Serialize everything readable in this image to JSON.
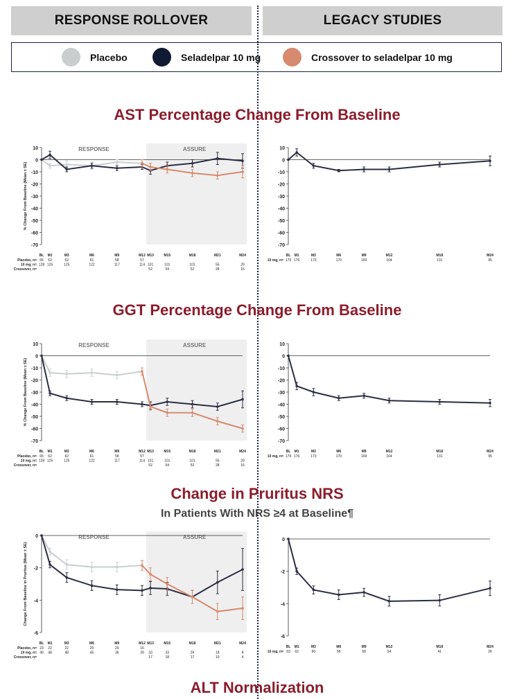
{
  "headers": {
    "left": "RESPONSE ROLLOVER",
    "right": "LEGACY STUDIES"
  },
  "legend": [
    {
      "label": "Placebo",
      "color": "#c9cfcf"
    },
    {
      "label": "Seladelpar 10 mg",
      "color": "#111a33"
    },
    {
      "label": "Crossover to seladelpar 10 mg",
      "color": "#d88a6e"
    }
  ],
  "sections": {
    "ast": {
      "title": "AST Percentage Change From Baseline"
    },
    "ggt": {
      "title": "GGT Percentage Change From Baseline"
    },
    "pruritus": {
      "title": "Change in Pruritus NRS",
      "subtitle": "In Patients With NRS ≥4 at Baseline¶"
    },
    "alt": {
      "title": "ALT Normalization"
    }
  },
  "chart_data": [
    {
      "type": "line",
      "id": "ast-rollover",
      "ylabel": "% Change From Baseline (Mean ± SE)",
      "ylim": [
        -70,
        10
      ],
      "yticks": [
        10,
        0,
        -10,
        -20,
        -30,
        -40,
        -50,
        -60,
        -70
      ],
      "x_labels": [
        "BL",
        "M1",
        "M3",
        "M6",
        "M9",
        "M12",
        "M13",
        "M15",
        "M18",
        "M21",
        "M24"
      ],
      "x": [
        0,
        1,
        3,
        6,
        9,
        12,
        13,
        15,
        18,
        21,
        24
      ],
      "shade_from": 12.5,
      "region_labels": [
        "RESPONSE",
        "ASSURE"
      ],
      "series": [
        {
          "name": "Placebo",
          "color": "#c9cfcf",
          "x": [
            0,
            1,
            3,
            6,
            9,
            12
          ],
          "y": [
            0,
            -5,
            -4,
            -5,
            -2,
            -3
          ],
          "se": [
            0,
            2,
            3,
            3,
            2,
            3
          ]
        },
        {
          "name": "Seladelpar 10 mg",
          "color": "#2b2d42",
          "x": [
            0,
            1,
            3,
            6,
            9,
            12,
            13,
            15,
            18,
            21,
            24
          ],
          "y": [
            0,
            4,
            -8,
            -5,
            -7,
            -6,
            -9,
            -5,
            -3,
            1,
            -1
          ],
          "se": [
            0,
            3,
            2,
            2,
            2,
            2,
            3,
            3,
            3,
            5,
            6
          ]
        },
        {
          "name": "Crossover to seladelpar 10 mg",
          "color": "#d88a6e",
          "x": [
            12,
            13,
            15,
            18,
            21,
            24
          ],
          "y": [
            -3,
            -6,
            -8,
            -11,
            -13,
            -10
          ],
          "se": [
            3,
            3,
            3,
            3,
            3,
            5
          ]
        }
      ],
      "table": [
        {
          "label": "Placebo, n=",
          "values": [
            "65",
            "62",
            "62",
            "61",
            "58",
            "57",
            "",
            "",
            "",
            "",
            ""
          ]
        },
        {
          "label": "10 mg, n=",
          "values": [
            "128",
            "125",
            "125",
            "122",
            "117",
            "114",
            "101",
            "101",
            "101",
            "55",
            "29"
          ]
        },
        {
          "label": "Crossover, n=",
          "values": [
            "",
            "",
            "",
            "",
            "",
            "",
            "52",
            "54",
            "52",
            "28",
            "16"
          ]
        }
      ]
    },
    {
      "type": "line",
      "id": "ast-legacy",
      "ylim": [
        -70,
        10
      ],
      "yticks": [
        10,
        0,
        -10,
        -20,
        -30,
        -40,
        -50,
        -60,
        -70
      ],
      "x_labels": [
        "BL",
        "M1",
        "M3",
        "M6",
        "M9",
        "M12",
        "M18",
        "M24"
      ],
      "x": [
        0,
        1,
        3,
        6,
        9,
        12,
        18,
        24
      ],
      "series": [
        {
          "name": "Seladelpar 10 mg",
          "color": "#2b2d42",
          "x": [
            0,
            1,
            3,
            6,
            9,
            12,
            18,
            24
          ],
          "y": [
            0,
            6,
            -5,
            -9,
            -8,
            -8,
            -4,
            -1
          ],
          "se": [
            0,
            3,
            2,
            1,
            2,
            2,
            2,
            4
          ]
        }
      ],
      "table": [
        {
          "label": "10 mg, n=",
          "values": [
            "179",
            "176",
            "173",
            "170",
            "169",
            "164",
            "131",
            "95"
          ]
        }
      ]
    },
    {
      "type": "line",
      "id": "ggt-rollover",
      "ylabel": "% Change From Baseline (Mean ± SE)",
      "ylim": [
        -70,
        10
      ],
      "yticks": [
        10,
        0,
        -10,
        -20,
        -30,
        -40,
        -50,
        -60,
        -70
      ],
      "x_labels": [
        "BL",
        "M1",
        "M3",
        "M6",
        "M9",
        "M12",
        "M13",
        "M15",
        "M18",
        "M21",
        "M24"
      ],
      "x": [
        0,
        1,
        3,
        6,
        9,
        12,
        13,
        15,
        18,
        21,
        24
      ],
      "shade_from": 12.5,
      "region_labels": [
        "RESPONSE",
        "ASSURE"
      ],
      "series": [
        {
          "name": "Placebo",
          "color": "#c9cfcf",
          "x": [
            0,
            1,
            3,
            6,
            9,
            12
          ],
          "y": [
            0,
            -14,
            -15,
            -14,
            -16,
            -13
          ],
          "se": [
            0,
            3,
            3,
            3,
            3,
            3
          ]
        },
        {
          "name": "Seladelpar 10 mg",
          "color": "#2b2d42",
          "x": [
            0,
            1,
            3,
            6,
            9,
            12,
            13,
            15,
            18,
            21,
            24
          ],
          "y": [
            0,
            -31,
            -35,
            -38,
            -38,
            -40,
            -41,
            -38,
            -40,
            -42,
            -36
          ],
          "se": [
            0,
            2,
            2,
            2,
            2,
            2,
            3,
            3,
            3,
            3,
            7
          ]
        },
        {
          "name": "Crossover to seladelpar 10 mg",
          "color": "#d88a6e",
          "x": [
            12,
            13,
            15,
            18,
            21,
            24
          ],
          "y": [
            -13,
            -42,
            -47,
            -47,
            -54,
            -60
          ],
          "se": [
            3,
            3,
            3,
            3,
            3,
            3
          ]
        }
      ],
      "table": [
        {
          "label": "Placebo, n=",
          "values": [
            "65",
            "62",
            "62",
            "61",
            "58",
            "57",
            "",
            "",
            "",
            "",
            ""
          ]
        },
        {
          "label": "10 mg, n=",
          "values": [
            "128",
            "125",
            "125",
            "122",
            "117",
            "114",
            "101",
            "101",
            "101",
            "55",
            "29"
          ]
        },
        {
          "label": "Crossover, n=",
          "values": [
            "",
            "",
            "",
            "",
            "",
            "",
            "52",
            "54",
            "52",
            "28",
            "16"
          ]
        }
      ]
    },
    {
      "type": "line",
      "id": "ggt-legacy",
      "ylim": [
        -70,
        10
      ],
      "yticks": [
        10,
        0,
        -10,
        -20,
        -30,
        -40,
        -50,
        -60,
        -70
      ],
      "x_labels": [
        "BL",
        "M1",
        "M3",
        "M6",
        "M9",
        "M12",
        "M18",
        "M24"
      ],
      "x": [
        0,
        1,
        3,
        6,
        9,
        12,
        18,
        24
      ],
      "series": [
        {
          "name": "Seladelpar 10 mg",
          "color": "#2b2d42",
          "x": [
            0,
            1,
            3,
            6,
            9,
            12,
            18,
            24
          ],
          "y": [
            0,
            -25,
            -30,
            -35,
            -33,
            -37,
            -38,
            -39
          ],
          "se": [
            0,
            3,
            3,
            2,
            2,
            2,
            2,
            3
          ]
        }
      ],
      "table": [
        {
          "label": "10 mg, n=",
          "values": [
            "179",
            "176",
            "173",
            "170",
            "169",
            "164",
            "131",
            "95"
          ]
        }
      ]
    },
    {
      "type": "line",
      "id": "pruritus-rollover",
      "ylabel": "Change From Baseline in Pruritus (Mean ± SE)",
      "ylim": [
        -6,
        0
      ],
      "yticks": [
        0,
        -2,
        -4,
        -6
      ],
      "x_labels": [
        "BL",
        "M1",
        "M3",
        "M6",
        "M9",
        "M12",
        "M13",
        "M15",
        "M18",
        "M21",
        "M24"
      ],
      "x": [
        0,
        1,
        3,
        6,
        9,
        12,
        13,
        15,
        18,
        21,
        24
      ],
      "shade_from": 12.5,
      "region_labels": [
        "RESPONSE",
        "ASSURE"
      ],
      "series": [
        {
          "name": "Placebo",
          "color": "#c9cfcf",
          "x": [
            0,
            1,
            3,
            6,
            9,
            12
          ],
          "y": [
            0,
            -1.0,
            -1.8,
            -1.95,
            -1.95,
            -1.85
          ],
          "se": [
            0,
            0.2,
            0.3,
            0.3,
            0.3,
            0.3
          ]
        },
        {
          "name": "Seladelpar 10 mg",
          "color": "#2b2d42",
          "x": [
            0,
            1,
            3,
            6,
            9,
            12,
            13,
            15,
            18,
            21,
            24
          ],
          "y": [
            0,
            -1.8,
            -2.6,
            -3.1,
            -3.35,
            -3.4,
            -3.25,
            -3.3,
            -3.8,
            -2.9,
            -2.1
          ],
          "se": [
            0,
            0.2,
            0.3,
            0.3,
            0.3,
            0.3,
            0.4,
            0.4,
            0.4,
            0.7,
            1.3
          ]
        },
        {
          "name": "Crossover to seladelpar 10 mg",
          "color": "#d88a6e",
          "x": [
            12,
            13,
            15,
            18,
            21,
            24
          ],
          "y": [
            -1.85,
            -2.4,
            -3.0,
            -3.8,
            -4.7,
            -4.5
          ],
          "se": [
            0.3,
            0.4,
            0.4,
            0.4,
            0.5,
            0.7
          ]
        }
      ],
      "table": [
        {
          "label": "Placebo, n=",
          "values": [
            "23",
            "22",
            "22",
            "20",
            "20",
            "16",
            "",
            "",
            "",
            "",
            ""
          ]
        },
        {
          "label": "10 mg, n=",
          "values": [
            "49",
            "48",
            "48",
            "45",
            "36",
            "39",
            "33",
            "33",
            "26",
            "18",
            "8"
          ]
        },
        {
          "label": "Crossover, n=",
          "values": [
            "",
            "",
            "",
            "",
            "",
            "",
            "17",
            "18",
            "17",
            "10",
            "4"
          ]
        }
      ]
    },
    {
      "type": "line",
      "id": "pruritus-legacy",
      "ylim": [
        -6,
        0
      ],
      "yticks": [
        0,
        -2,
        -4,
        -6
      ],
      "x_labels": [
        "BL",
        "M1",
        "M3",
        "M6",
        "M9",
        "M12",
        "M18",
        "M24"
      ],
      "x": [
        0,
        1,
        3,
        6,
        9,
        12,
        18,
        24
      ],
      "series": [
        {
          "name": "Seladelpar 10 mg",
          "color": "#2b2d42",
          "x": [
            0,
            1,
            3,
            6,
            9,
            12,
            18,
            24
          ],
          "y": [
            0,
            -2.0,
            -3.15,
            -3.45,
            -3.3,
            -3.85,
            -3.8,
            -3.05
          ],
          "se": [
            0,
            0.2,
            0.25,
            0.3,
            0.25,
            0.3,
            0.35,
            0.45
          ]
        }
      ],
      "table": [
        {
          "label": "10 mg, n=",
          "values": [
            "63",
            "62",
            "60",
            "56",
            "58",
            "54",
            "41",
            "26"
          ]
        }
      ]
    }
  ]
}
